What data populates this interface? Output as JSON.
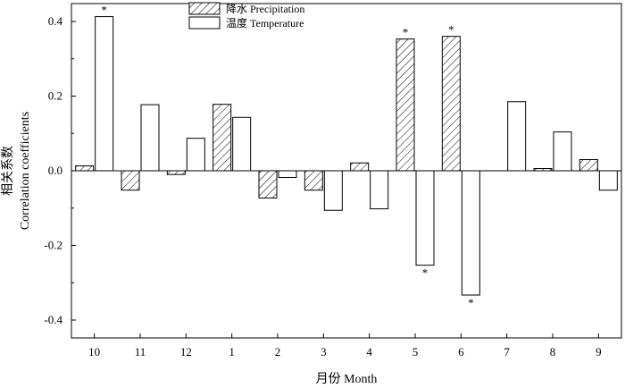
{
  "chart_data": {
    "type": "bar",
    "categories": [
      "10",
      "11",
      "12",
      "1",
      "2",
      "3",
      "4",
      "5",
      "6",
      "7",
      "8",
      "9"
    ],
    "series": [
      {
        "name": "降水 Precipitation",
        "pattern": "hatched",
        "values": [
          0.013,
          -0.052,
          -0.01,
          0.178,
          -0.073,
          -0.052,
          0.021,
          0.353,
          0.36,
          0.0,
          0.006,
          0.03
        ],
        "significant": [
          false,
          false,
          false,
          false,
          false,
          false,
          false,
          true,
          true,
          false,
          false,
          false
        ]
      },
      {
        "name": "温度 Temperature",
        "pattern": "open",
        "values": [
          0.413,
          0.177,
          0.087,
          0.143,
          -0.018,
          -0.106,
          -0.102,
          -0.253,
          -0.333,
          0.185,
          0.104,
          -0.052
        ],
        "significant": [
          true,
          false,
          false,
          false,
          false,
          false,
          false,
          true,
          true,
          false,
          false,
          false
        ]
      }
    ],
    "xlabel": "月份 Month",
    "ylabel_line1": "相关系数",
    "ylabel_line2": "Correlation coefficients",
    "ylim": [
      -0.45,
      0.45
    ],
    "yticks": [
      "0.4",
      "0.2",
      "0.0",
      "-0.2",
      "-0.4"
    ],
    "significance_marker": "*",
    "legend_position": "top-center",
    "grid": false
  }
}
